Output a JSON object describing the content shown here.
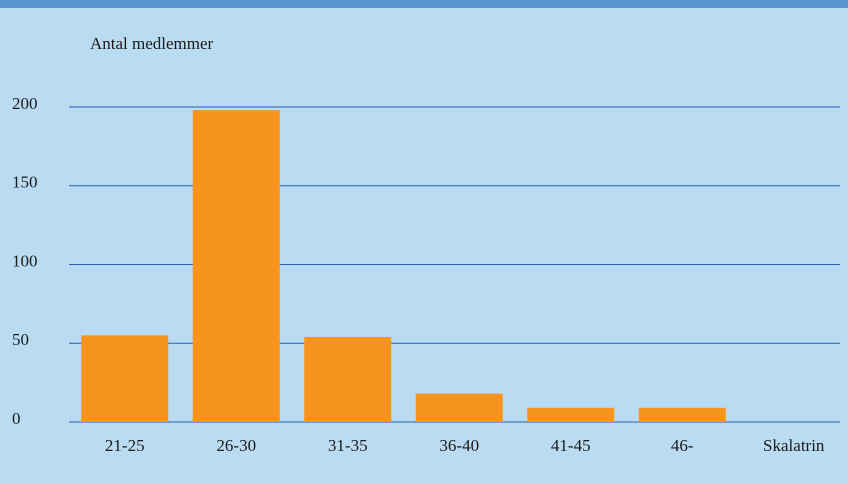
{
  "chart_data": {
    "type": "bar",
    "y_label": "Antal medlemmer",
    "x_label": "Skalatrin",
    "categories": [
      "21-25",
      "26-30",
      "31-35",
      "36-40",
      "41-45",
      "46-"
    ],
    "values": [
      55,
      198,
      54,
      18,
      9,
      9
    ],
    "color": "#f7941d",
    "ylim": [
      0,
      200
    ],
    "yticks": [
      0,
      50,
      100,
      150,
      200
    ],
    "grid": true,
    "grid_color": "#2d5ea6"
  }
}
